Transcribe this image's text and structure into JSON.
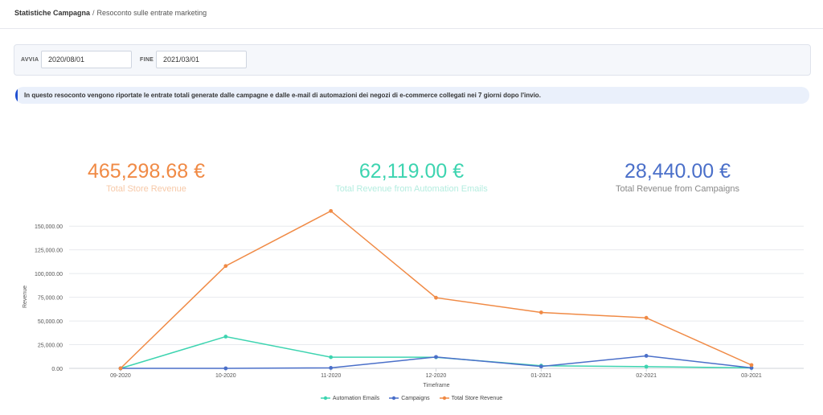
{
  "breadcrumb": {
    "current": "Statistiche Campagna",
    "separator": "/",
    "subtitle": "Resoconto sulle entrate marketing"
  },
  "filters": {
    "start_label": "AVVIA",
    "start_value": "2020/08/01",
    "end_label": "FINE",
    "end_value": "2021/03/01"
  },
  "info": {
    "text": "In questo resoconto vengono riportate le entrate totali generate dalle campagne e dalle e-mail di automazioni dei negozi di e-commerce collegati nei 7 giorni dopo l'invio."
  },
  "stats": [
    {
      "value": "465,298.68 €",
      "label": "Total Store Revenue",
      "color": "#f08a45",
      "label_color": "#f7c9a8"
    },
    {
      "value": "62,119.00 €",
      "label": "Total Revenue from Automation Emails",
      "color": "#3dd4b0",
      "label_color": "#b5ede0"
    },
    {
      "value": "28,440.00 €",
      "label": "Total Revenue from Campaigns",
      "color": "#4a6fc9",
      "label_color": "#888888"
    }
  ],
  "chart_data": {
    "type": "line",
    "categories": [
      "09-2020",
      "10-2020",
      "11-2020",
      "12-2020",
      "01-2021",
      "02-2021",
      "03-2021"
    ],
    "ytick_labels": [
      "0.00",
      "25,000.00",
      "50,000.00",
      "75,000.00",
      "100,000.00",
      "125,000.00",
      "150,000.00"
    ],
    "ylim": [
      0,
      168000
    ],
    "xlabel": "Timeframe",
    "ylabel": "Revenue",
    "grid": true,
    "legend_position": "bottom",
    "series": [
      {
        "name": "Automation Emails",
        "color": "#3dd4b0",
        "values": [
          0,
          33500,
          11800,
          11700,
          2800,
          1800,
          500
        ]
      },
      {
        "name": "Campaigns",
        "color": "#4a6fc9",
        "values": [
          0,
          0,
          500,
          12000,
          2000,
          13200,
          500
        ]
      },
      {
        "name": "Total Store Revenue",
        "color": "#f08a45",
        "values": [
          0,
          108000,
          166000,
          74500,
          59000,
          53300,
          3500
        ]
      }
    ]
  }
}
